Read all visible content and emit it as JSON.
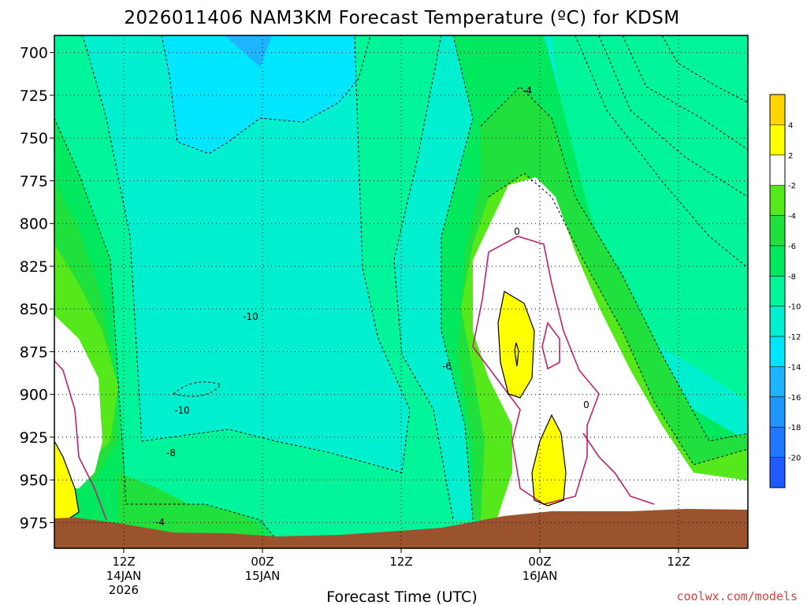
{
  "chart_data": {
    "type": "heatmap",
    "title": "2026011406 NAM3KM Forecast Temperature (ºC) for KDSM",
    "xlabel": "Forecast Time (UTC)",
    "ylabel": "",
    "y_axis": {
      "unit": "hPa",
      "ticks": [
        700,
        725,
        750,
        775,
        800,
        825,
        850,
        875,
        900,
        925,
        950,
        975
      ],
      "ylim": [
        990,
        690
      ],
      "direction": "pressure increasing downward"
    },
    "x_axis": {
      "unit": "hours since 2026-01-14 06Z",
      "xlim": [
        0,
        60
      ],
      "ticks": [
        {
          "hour": 6,
          "label": "12Z",
          "sub": [
            "14JAN",
            "2026"
          ]
        },
        {
          "hour": 18,
          "label": "00Z",
          "sub": [
            "15JAN"
          ]
        },
        {
          "hour": 30,
          "label": "12Z",
          "sub": []
        },
        {
          "hour": 42,
          "label": "00Z",
          "sub": [
            "16JAN"
          ]
        },
        {
          "hour": 54,
          "label": "12Z",
          "sub": []
        }
      ]
    },
    "colorbar": {
      "levels": [
        -22,
        -20,
        -18,
        -16,
        -14,
        -12,
        -10,
        -8,
        -6,
        -4,
        -2,
        2,
        4,
        6
      ],
      "tick_labels": [
        "4",
        "2",
        "-2",
        "-4",
        "-6",
        "-8",
        "-10",
        "-12",
        "-14",
        "-16",
        "-18",
        "-20"
      ],
      "colors_bottom_to_top": [
        "#1e5aff",
        "#1f78ff",
        "#1f96ff",
        "#1eb4ff",
        "#00e6ff",
        "#00f0cf",
        "#00f59a",
        "#00e85e",
        "#1fe03d",
        "#55e81a",
        "#ffffff",
        "#ffff00",
        "#ffd400"
      ]
    },
    "contour_labels": [
      "-4",
      "0",
      "-10",
      "-6",
      "0",
      "-10",
      "-8",
      "-4"
    ],
    "colors": {
      "ground": "#9b532d",
      "freezing_line": "#c02070",
      "contours": "#000000"
    },
    "grid": true,
    "credit": "coolwx.com/models"
  }
}
